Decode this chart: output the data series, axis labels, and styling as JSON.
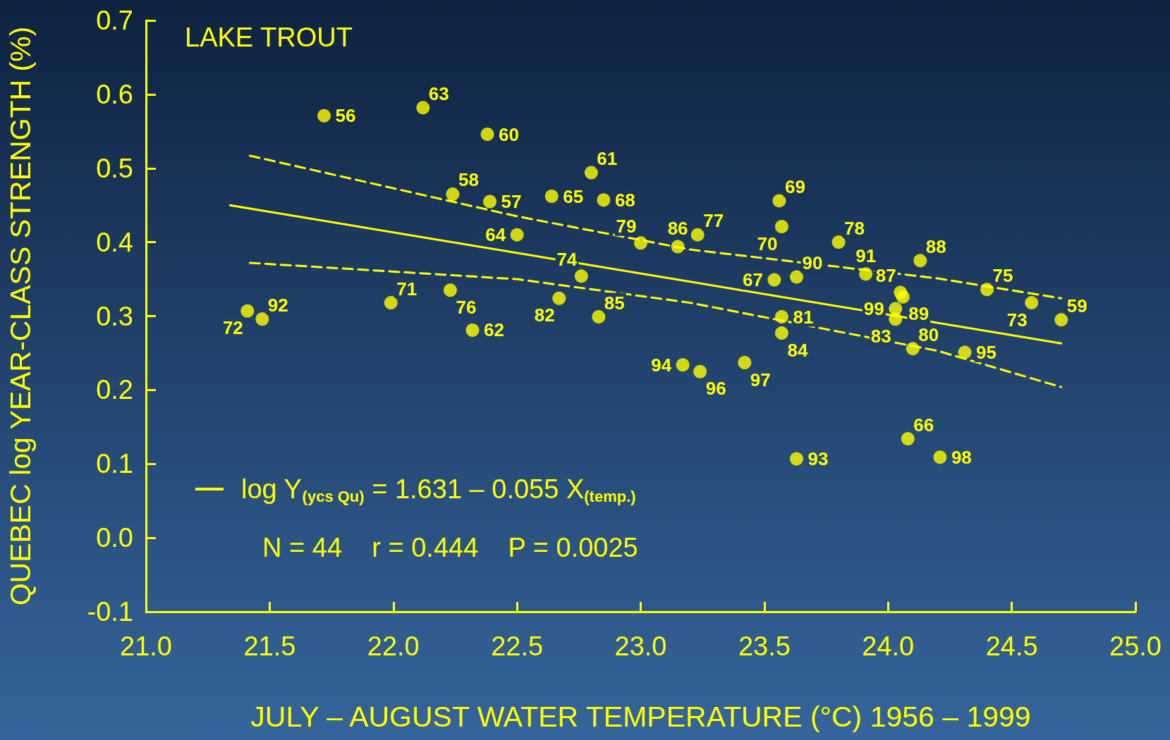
{
  "chart_data": {
    "type": "scatter",
    "title": "LAKE TROUT",
    "xlabel": "JULY – AUGUST WATER TEMPERATURE (°C) 1956 – 1999",
    "ylabel": "QUEBEC log YEAR-CLASS STRENGTH (%)",
    "xlim": [
      21.0,
      25.0
    ],
    "xticks": [
      {
        "value": 21,
        "label": "21.0"
      },
      21.5,
      {
        "value": 22,
        "label": "22.0"
      },
      22.5,
      {
        "value": 23,
        "label": "23.0"
      },
      23.5,
      {
        "value": 24,
        "label": "24.0"
      },
      24.5,
      {
        "value": 25,
        "label": "25.0"
      }
    ],
    "ylim": [
      -0.1,
      0.7
    ],
    "yticks": [
      -0.1,
      {
        "value": 0,
        "label": "0.0"
      },
      0.1,
      0.2,
      0.3,
      0.4,
      0.5,
      0.6,
      0.7
    ],
    "grid": false,
    "legend": "bottom left",
    "marker": "circle",
    "series": [
      {
        "type": "scatter",
        "color": "#ffff00",
        "x": [
          21.72,
          22.12,
          22.38,
          22.24,
          22.39,
          22.64,
          22.8,
          22.85,
          23.56,
          22.5,
          23.0,
          23.15,
          23.23,
          23.57,
          23.8,
          23.91,
          24.13,
          23.63,
          23.54,
          24.05,
          24.06,
          24.03,
          24.03,
          24.4,
          24.58,
          24.7,
          22.76,
          22.67,
          22.83,
          21.99,
          22.23,
          22.32,
          21.41,
          21.47,
          23.57,
          23.57,
          24.1,
          24.31,
          23.17,
          23.24,
          23.42,
          23.63,
          24.08,
          24.21
        ],
        "values": [
          0.571,
          0.582,
          0.546,
          0.465,
          0.455,
          0.462,
          0.494,
          0.457,
          0.456,
          0.41,
          0.399,
          0.394,
          0.41,
          0.421,
          0.4,
          0.357,
          0.375,
          0.353,
          0.349,
          0.332,
          0.326,
          0.31,
          0.296,
          0.336,
          0.318,
          0.295,
          0.354,
          0.324,
          0.299,
          0.318,
          0.335,
          0.281,
          0.307,
          0.296,
          0.299,
          0.277,
          0.256,
          0.251,
          0.234,
          0.225,
          0.237,
          0.107,
          0.134,
          0.109
        ]
      },
      {
        "type": "line",
        "name": "log Y$_{(ycs Qu)}$ = 1.631 – 0.055 X$_{(temp.)}$",
        "color": "#ffff00",
        "line_style": "solid",
        "marker": "none",
        "x": [
          21.34,
          24.7
        ],
        "values": [
          0.45,
          0.263
        ]
      },
      {
        "type": "line",
        "color": "#ffff00",
        "line_style": "dashed",
        "marker": "none",
        "x": [
          21.42,
          22.5,
          23.2,
          24.2,
          24.7
        ],
        "values": [
          0.517,
          0.435,
          0.39,
          0.351,
          0.324
        ]
      },
      {
        "type": "line",
        "color": "#ffff00",
        "line_style": "dashed",
        "marker": "none",
        "x": [
          21.42,
          22.5,
          23.2,
          24.2,
          24.7
        ],
        "values": [
          0.372,
          0.35,
          0.318,
          0.253,
          0.204
        ]
      }
    ],
    "annotations": [
      "N = 44    r = 0.444    P = 0.0025",
      {
        "text": "56",
        "x": 21.72,
        "y": 0.571
      },
      {
        "text": "63",
        "x": 22.12,
        "y": 0.582
      },
      {
        "text": "60",
        "x": 22.38,
        "y": 0.546
      },
      {
        "text": "58",
        "x": 22.24,
        "y": 0.465
      },
      {
        "text": "57",
        "x": 22.39,
        "y": 0.455
      },
      {
        "text": "65",
        "x": 22.64,
        "y": 0.462
      },
      {
        "text": "61",
        "x": 22.8,
        "y": 0.494
      },
      {
        "text": "68",
        "x": 22.85,
        "y": 0.457
      },
      {
        "text": "69",
        "x": 23.56,
        "y": 0.456
      },
      {
        "text": "64",
        "x": 22.5,
        "y": 0.41
      },
      {
        "text": "79",
        "x": 23.0,
        "y": 0.399
      },
      {
        "text": "86",
        "x": 23.15,
        "y": 0.394
      },
      {
        "text": "77",
        "x": 23.23,
        "y": 0.41
      },
      {
        "text": "70",
        "x": 23.57,
        "y": 0.421
      },
      {
        "text": "78",
        "x": 23.8,
        "y": 0.4
      },
      {
        "text": "91",
        "x": 23.91,
        "y": 0.357
      },
      {
        "text": "88",
        "x": 24.13,
        "y": 0.375
      },
      {
        "text": "90",
        "x": 23.63,
        "y": 0.353
      },
      {
        "text": "67",
        "x": 23.54,
        "y": 0.349
      },
      {
        "text": "87",
        "x": 24.05,
        "y": 0.332
      },
      {
        "text": "89",
        "x": 24.06,
        "y": 0.326
      },
      {
        "text": "99",
        "x": 24.03,
        "y": 0.31
      },
      {
        "text": "83",
        "x": 24.03,
        "y": 0.296
      },
      {
        "text": "75",
        "x": 24.4,
        "y": 0.336
      },
      {
        "text": "73",
        "x": 24.58,
        "y": 0.318
      },
      {
        "text": "59",
        "x": 24.7,
        "y": 0.295
      },
      {
        "text": "74",
        "x": 22.76,
        "y": 0.354
      },
      {
        "text": "82",
        "x": 22.67,
        "y": 0.324
      },
      {
        "text": "85",
        "x": 22.83,
        "y": 0.299
      },
      {
        "text": "71",
        "x": 21.99,
        "y": 0.318
      },
      {
        "text": "76",
        "x": 22.23,
        "y": 0.335
      },
      {
        "text": "62",
        "x": 22.32,
        "y": 0.281
      },
      {
        "text": "72",
        "x": 21.41,
        "y": 0.307
      },
      {
        "text": "92",
        "x": 21.47,
        "y": 0.296
      },
      {
        "text": "81",
        "x": 23.57,
        "y": 0.299
      },
      {
        "text": "84",
        "x": 23.57,
        "y": 0.277
      },
      {
        "text": "80",
        "x": 24.1,
        "y": 0.256
      },
      {
        "text": "95",
        "x": 24.31,
        "y": 0.251
      },
      {
        "text": "94",
        "x": 23.17,
        "y": 0.234
      },
      {
        "text": "96",
        "x": 23.24,
        "y": 0.225
      },
      {
        "text": "97",
        "x": 23.42,
        "y": 0.237
      },
      {
        "text": "93",
        "x": 23.63,
        "y": 0.107
      },
      {
        "text": "66",
        "x": 24.08,
        "y": 0.134
      },
      {
        "text": "98",
        "x": 24.21,
        "y": 0.109
      }
    ]
  }
}
